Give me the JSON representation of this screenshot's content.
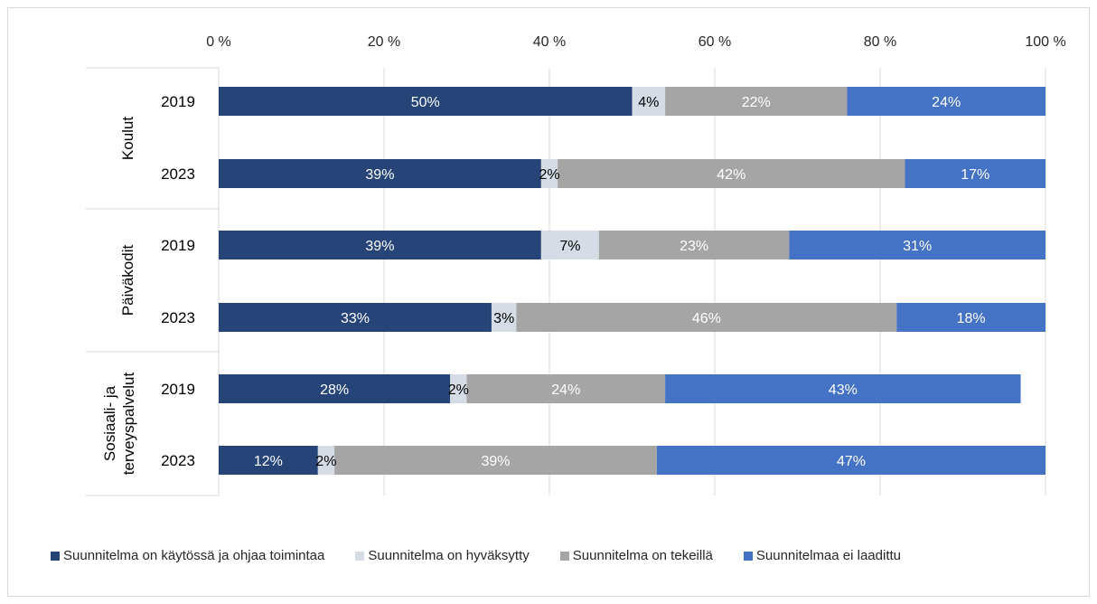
{
  "chart_data": {
    "type": "bar",
    "orientation": "horizontal",
    "stacked": "percent",
    "title": "",
    "xlabel": "",
    "ylabel": "",
    "xlim": [
      0,
      100
    ],
    "x_ticks": [
      "0 %",
      "20 %",
      "40 %",
      "60 %",
      "80 %",
      "100 %"
    ],
    "x_axis_position": "top",
    "grid": "vertical",
    "legend_position": "bottom",
    "groups": [
      {
        "label": "Koulut",
        "rows": [
          "2019",
          "2023"
        ]
      },
      {
        "label": "Päiväkodit",
        "rows": [
          "2019",
          "2023"
        ]
      },
      {
        "label": "Sosiaali- ja terveyspalvelut",
        "label_lines": [
          "Sosiaali- ja",
          "terveyspalvelut"
        ],
        "rows": [
          "2019",
          "2023"
        ]
      }
    ],
    "categories": [
      "Koulut 2019",
      "Koulut 2023",
      "Päiväkodit 2019",
      "Päiväkodit 2023",
      "Sosiaali- ja terveyspalvelut 2019",
      "Sosiaali- ja terveyspalvelut 2023"
    ],
    "series": [
      {
        "name": "Suunnitelma on käytössä ja ohjaa toimintaa",
        "color": "#264478",
        "label_color": "#ffffff",
        "values": [
          50,
          39,
          39,
          33,
          28,
          12
        ],
        "labels": [
          "50%",
          "39%",
          "39%",
          "33%",
          "28%",
          "12%"
        ]
      },
      {
        "name": "Suunnitelma on hyväksytty",
        "color": "#d6dce5",
        "label_color": "#000000",
        "values": [
          4,
          2,
          7,
          3,
          2,
          2
        ],
        "labels": [
          "4%",
          "2%",
          "7%",
          "3%",
          "2%",
          "2%"
        ]
      },
      {
        "name": "Suunnitelma on tekeillä",
        "color": "#a5a5a5",
        "label_color": "#ffffff",
        "values": [
          22,
          42,
          23,
          46,
          24,
          39
        ],
        "labels": [
          "22%",
          "42%",
          "23%",
          "46%",
          "24%",
          "39%"
        ]
      },
      {
        "name": "Suunnitelmaa ei laadittu",
        "color": "#4472c4",
        "label_color": "#ffffff",
        "values": [
          24,
          17,
          31,
          18,
          43,
          47
        ],
        "labels": [
          "24%",
          "17%",
          "31%",
          "18%",
          "43%",
          "47%"
        ]
      }
    ]
  }
}
